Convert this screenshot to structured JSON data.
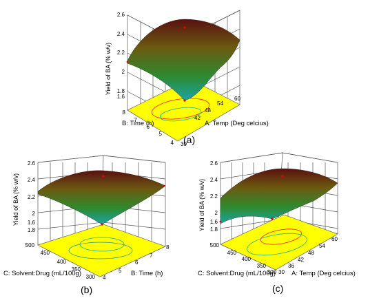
{
  "chart_data": [
    {
      "type": "surface3d",
      "panel_label": "(a)",
      "zlabel": "Yield of BA (% w/v)",
      "xlabel": "A: Temp (Deg celcius)",
      "ylabel": "B: Time (h)",
      "x_ticks": [
        "30",
        "36",
        "42",
        "48",
        "54",
        "60"
      ],
      "y_ticks": [
        "4",
        "5",
        "6",
        "7",
        "8"
      ],
      "z_ticks": [
        "1.6",
        "1.8",
        "2",
        "2.2",
        "2.4",
        "2.6"
      ],
      "xlim": [
        30,
        60
      ],
      "ylim": [
        4,
        8
      ],
      "zlim": [
        1.6,
        2.6
      ],
      "corner_points": {
        "x0y0": 1.5,
        "x1y0": 2.05,
        "x0y1": 1.95,
        "x1y1": 2.2
      },
      "peak": {
        "x": 45,
        "y": 6,
        "z": 2.45
      },
      "floor_color": "#ffff00"
    },
    {
      "type": "surface3d",
      "panel_label": "(b)",
      "zlabel": "Yield of BA (% w/v)",
      "xlabel": "B: Time (h)",
      "ylabel": "C: Solvent:Drug (mL/100g)",
      "x_ticks": [
        "4",
        "5",
        "6",
        "7",
        "8"
      ],
      "y_ticks": [
        "300",
        "350",
        "400",
        "450",
        "500"
      ],
      "z_ticks": [
        "1.6",
        "1.8",
        "2",
        "2.2",
        "2.4",
        "2.6"
      ],
      "xlim": [
        4,
        8
      ],
      "ylim": [
        300,
        500
      ],
      "zlim": [
        1.6,
        2.6
      ],
      "corner_points": {
        "x0y0": 1.65,
        "x1y0": 2.15,
        "x0y1": 2.2,
        "x1y1": 2.15
      },
      "peak": {
        "x": 6,
        "y": 400,
        "z": 2.45
      },
      "floor_color": "#ffff00"
    },
    {
      "type": "surface3d",
      "panel_label": "(c)",
      "zlabel": "Yield of BA (% w/v)",
      "xlabel": "A: Temp (Deg celcius)",
      "ylabel": "C: Solvent:Drug (mL/100g)",
      "x_ticks": [
        "30",
        "36",
        "42",
        "48",
        "54",
        "60"
      ],
      "y_ticks": [
        "300",
        "350",
        "400",
        "450",
        "500"
      ],
      "z_ticks": [
        "1.6",
        "1.8",
        "2",
        "2.2",
        "2.4",
        "2.6"
      ],
      "xlim": [
        30,
        60
      ],
      "ylim": [
        300,
        500
      ],
      "zlim": [
        1.6,
        2.6
      ],
      "corner_points": {
        "x0y0": 1.7,
        "x1y0": 2.05,
        "x0y1": 1.75,
        "x1y1": 2.15
      },
      "peak": {
        "x": 45,
        "y": 400,
        "z": 2.5
      },
      "floor_color": "#ffff00"
    }
  ]
}
